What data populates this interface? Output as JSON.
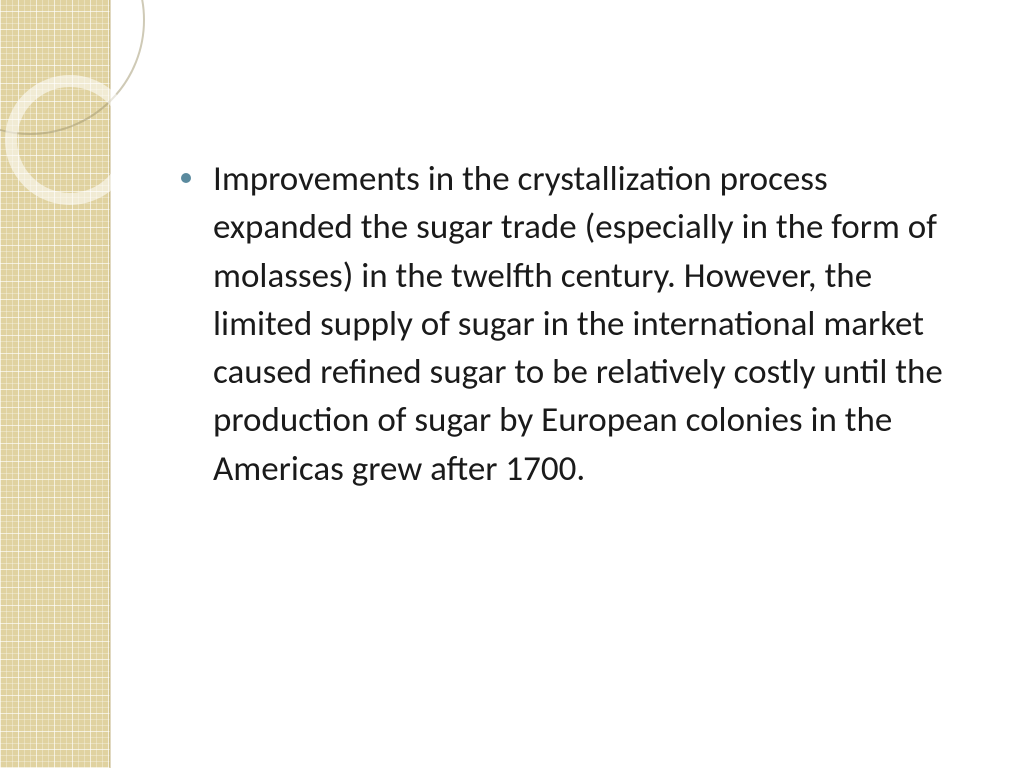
{
  "slide": {
    "bullet_color": "#5a8a9e",
    "sidebar_color": "#e0d2a0",
    "text_color": "#1a1a1a",
    "background_color": "#ffffff",
    "body_fontsize": 35,
    "bullets": [
      "Improvements in the crystallization process expanded the sugar trade (especially in the form of molasses) in the twelfth century. However, the limited supply of sugar in the international market caused refined sugar to be relatively costly until the production of sugar by European colonies in the Americas grew after 1700."
    ]
  }
}
